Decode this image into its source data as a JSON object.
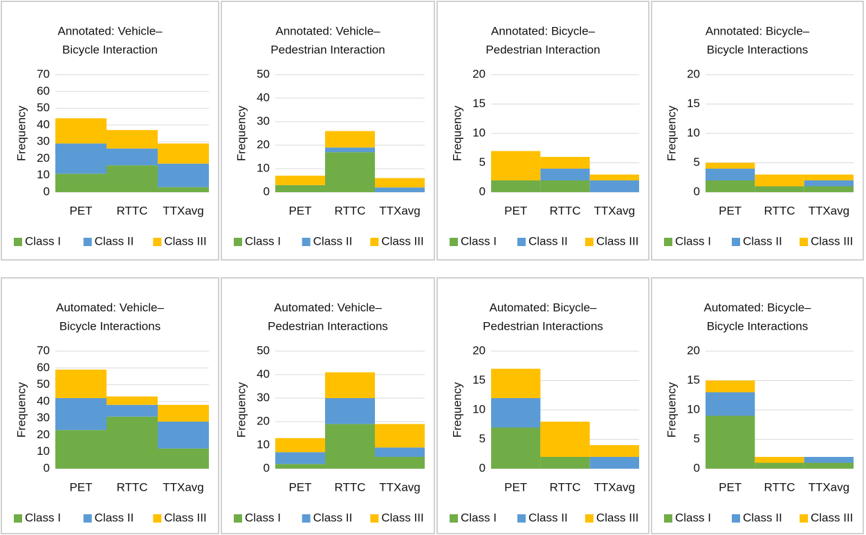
{
  "chart_data": [
    {
      "type": "bar",
      "stacked": true,
      "title": [
        "Annotated: Vehicle–",
        "Bicycle Interaction"
      ],
      "y_label": "Frequency",
      "categories": [
        "PET",
        "RTTC",
        "TTXavg"
      ],
      "ylim": [
        0,
        70
      ],
      "yticks": [
        0,
        10,
        20,
        30,
        40,
        50,
        60,
        70
      ],
      "grid": true,
      "series": [
        {
          "name": "Class I",
          "color": "#70ad47",
          "values": [
            11,
            16,
            3
          ]
        },
        {
          "name": "Class II",
          "color": "#5b9bd5",
          "values": [
            18,
            10,
            14
          ]
        },
        {
          "name": "Class III",
          "color": "#ffc000",
          "values": [
            15,
            11,
            12
          ]
        }
      ]
    },
    {
      "type": "bar",
      "stacked": true,
      "title": [
        "Annotated: Vehicle–",
        "Pedestrian Interaction"
      ],
      "y_label": "Frequency",
      "categories": [
        "PET",
        "RTTC",
        "TTXavg"
      ],
      "ylim": [
        0,
        50
      ],
      "yticks": [
        0,
        10,
        20,
        30,
        40,
        50
      ],
      "grid": true,
      "series": [
        {
          "name": "Class I",
          "color": "#70ad47",
          "values": [
            3,
            17,
            0
          ]
        },
        {
          "name": "Class II",
          "color": "#5b9bd5",
          "values": [
            0,
            2,
            2
          ]
        },
        {
          "name": "Class III",
          "color": "#ffc000",
          "values": [
            4,
            7,
            4
          ]
        }
      ]
    },
    {
      "type": "bar",
      "stacked": true,
      "title": [
        "Annotated: Bicycle–",
        "Pedestrian Interaction"
      ],
      "y_label": "Frequency",
      "categories": [
        "PET",
        "RTTC",
        "TTXavg"
      ],
      "ylim": [
        0,
        20
      ],
      "yticks": [
        0,
        5,
        10,
        15,
        20
      ],
      "grid": true,
      "series": [
        {
          "name": "Class I",
          "color": "#70ad47",
          "values": [
            2,
            2,
            0
          ]
        },
        {
          "name": "Class II",
          "color": "#5b9bd5",
          "values": [
            0,
            2,
            2
          ]
        },
        {
          "name": "Class III",
          "color": "#ffc000",
          "values": [
            5,
            2,
            1
          ]
        }
      ]
    },
    {
      "type": "bar",
      "stacked": true,
      "title": [
        "Annotated: Bicycle–",
        "Bicycle Interactions"
      ],
      "y_label": "Frequency",
      "categories": [
        "PET",
        "RTTC",
        "TTXavg"
      ],
      "ylim": [
        0,
        20
      ],
      "yticks": [
        0,
        5,
        10,
        15,
        20
      ],
      "grid": true,
      "series": [
        {
          "name": "Class I",
          "color": "#70ad47",
          "values": [
            2,
            1,
            1
          ]
        },
        {
          "name": "Class II",
          "color": "#5b9bd5",
          "values": [
            2,
            0,
            1
          ]
        },
        {
          "name": "Class III",
          "color": "#ffc000",
          "values": [
            1,
            2,
            1
          ]
        }
      ]
    },
    {
      "type": "bar",
      "stacked": true,
      "title": [
        "Automated: Vehicle–",
        "Bicycle Interactions"
      ],
      "y_label": "Frequency",
      "categories": [
        "PET",
        "RTTC",
        "TTXavg"
      ],
      "ylim": [
        0,
        70
      ],
      "yticks": [
        0,
        10,
        20,
        30,
        40,
        50,
        60,
        70
      ],
      "grid": true,
      "series": [
        {
          "name": "Class I",
          "color": "#70ad47",
          "values": [
            23,
            31,
            12
          ]
        },
        {
          "name": "Class II",
          "color": "#5b9bd5",
          "values": [
            19,
            7,
            16
          ]
        },
        {
          "name": "Class III",
          "color": "#ffc000",
          "values": [
            17,
            5,
            10
          ]
        }
      ]
    },
    {
      "type": "bar",
      "stacked": true,
      "title": [
        "Automated: Vehicle–",
        "Pedestrian Interactions"
      ],
      "y_label": "Frequency",
      "categories": [
        "PET",
        "RTTC",
        "TTXavg"
      ],
      "ylim": [
        0,
        50
      ],
      "yticks": [
        0,
        10,
        20,
        30,
        40,
        50
      ],
      "grid": true,
      "series": [
        {
          "name": "Class I",
          "color": "#70ad47",
          "values": [
            2,
            19,
            5
          ]
        },
        {
          "name": "Class II",
          "color": "#5b9bd5",
          "values": [
            5,
            11,
            4
          ]
        },
        {
          "name": "Class III",
          "color": "#ffc000",
          "values": [
            6,
            11,
            10
          ]
        }
      ]
    },
    {
      "type": "bar",
      "stacked": true,
      "title": [
        "Automated: Bicycle–",
        "Pedestrian Interactions"
      ],
      "y_label": "Frequency",
      "categories": [
        "PET",
        "RTTC",
        "TTXavg"
      ],
      "ylim": [
        0,
        20
      ],
      "yticks": [
        0,
        5,
        10,
        15,
        20
      ],
      "grid": true,
      "series": [
        {
          "name": "Class I",
          "color": "#70ad47",
          "values": [
            7,
            2,
            0
          ]
        },
        {
          "name": "Class II",
          "color": "#5b9bd5",
          "values": [
            5,
            0,
            2
          ]
        },
        {
          "name": "Class III",
          "color": "#ffc000",
          "values": [
            5,
            6,
            2
          ]
        }
      ]
    },
    {
      "type": "bar",
      "stacked": true,
      "title": [
        "Automated: Bicycle–",
        "Bicycle Interactions"
      ],
      "y_label": "Frequency",
      "categories": [
        "PET",
        "RTTC",
        "TTXavg"
      ],
      "ylim": [
        0,
        20
      ],
      "yticks": [
        0,
        5,
        10,
        15,
        20
      ],
      "grid": true,
      "series": [
        {
          "name": "Class I",
          "color": "#70ad47",
          "values": [
            9,
            1,
            1
          ]
        },
        {
          "name": "Class II",
          "color": "#5b9bd5",
          "values": [
            4,
            0,
            1
          ]
        },
        {
          "name": "Class III",
          "color": "#ffc000",
          "values": [
            2,
            1,
            0
          ]
        }
      ]
    }
  ]
}
